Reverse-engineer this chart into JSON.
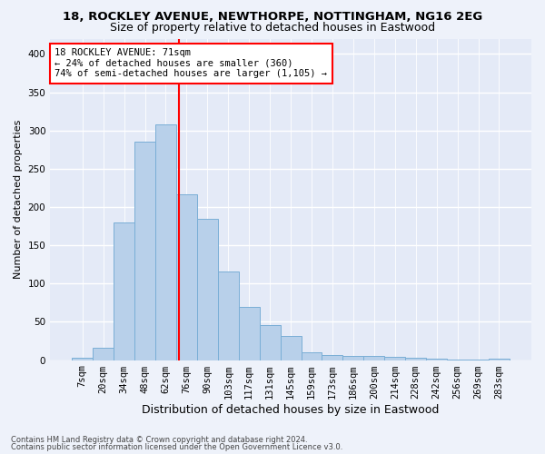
{
  "title1": "18, ROCKLEY AVENUE, NEWTHORPE, NOTTINGHAM, NG16 2EG",
  "title2": "Size of property relative to detached houses in Eastwood",
  "xlabel": "Distribution of detached houses by size in Eastwood",
  "ylabel": "Number of detached properties",
  "categories": [
    "7sqm",
    "20sqm",
    "34sqm",
    "48sqm",
    "62sqm",
    "76sqm",
    "90sqm",
    "103sqm",
    "117sqm",
    "131sqm",
    "145sqm",
    "159sqm",
    "173sqm",
    "186sqm",
    "200sqm",
    "214sqm",
    "228sqm",
    "242sqm",
    "256sqm",
    "269sqm",
    "283sqm"
  ],
  "values": [
    3,
    16,
    180,
    285,
    308,
    217,
    185,
    116,
    69,
    46,
    32,
    10,
    7,
    6,
    5,
    4,
    3,
    2,
    1,
    1,
    2
  ],
  "bar_color": "#b8d0ea",
  "bar_edge_color": "#7aaed6",
  "vline_x_index": 4.643,
  "annotation_text_line1": "18 ROCKLEY AVENUE: 71sqm",
  "annotation_text_line2": "← 24% of detached houses are smaller (360)",
  "annotation_text_line3": "74% of semi-detached houses are larger (1,105) →",
  "vline_color": "red",
  "footnote1": "Contains HM Land Registry data © Crown copyright and database right 2024.",
  "footnote2": "Contains public sector information licensed under the Open Government Licence v3.0.",
  "bg_color": "#eef2fa",
  "plot_bg_color": "#e4eaf7",
  "grid_color": "#ffffff",
  "ylim": [
    0,
    420
  ],
  "yticks": [
    0,
    50,
    100,
    150,
    200,
    250,
    300,
    350,
    400
  ],
  "title1_fontsize": 9.5,
  "title2_fontsize": 9,
  "ylabel_fontsize": 8,
  "xlabel_fontsize": 9,
  "tick_fontsize": 7.5,
  "annotation_fontsize": 7.5
}
